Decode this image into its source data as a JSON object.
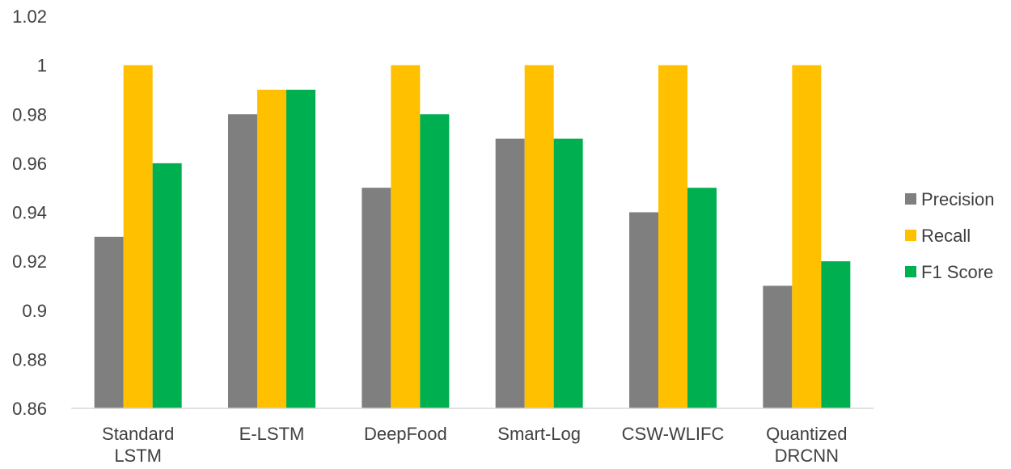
{
  "chart_data": {
    "type": "bar",
    "categories": [
      [
        "Standard",
        "LSTM"
      ],
      [
        "E-LSTM"
      ],
      [
        "DeepFood"
      ],
      [
        "Smart-Log"
      ],
      [
        "CSW-WLIFC"
      ],
      [
        "Quantized",
        "DRCNN"
      ]
    ],
    "series": [
      {
        "name": "Precision",
        "color": "#7f7f7f",
        "values": [
          0.93,
          0.98,
          0.95,
          0.97,
          0.94,
          0.91
        ]
      },
      {
        "name": "Recall",
        "color": "#ffc000",
        "values": [
          1.0,
          0.99,
          1.0,
          1.0,
          1.0,
          1.0
        ]
      },
      {
        "name": "F1 Score",
        "color": "#00b050",
        "values": [
          0.96,
          0.99,
          0.98,
          0.97,
          0.95,
          0.92
        ]
      }
    ],
    "yticks": [
      "0.86",
      "0.88",
      "0.9",
      "0.92",
      "0.94",
      "0.96",
      "0.98",
      "1",
      "1.02"
    ],
    "ylim": [
      0.86,
      1.02
    ],
    "grid": false,
    "legend_position": "right"
  }
}
